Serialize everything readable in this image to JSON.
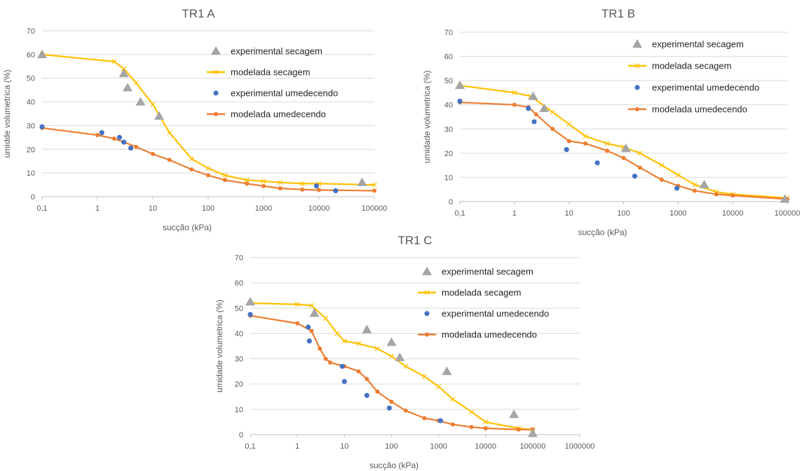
{
  "colors": {
    "exp_secagem": "#a5a5a5",
    "mod_secagem": "#ffc000",
    "exp_umedecendo": "#4472c4",
    "mod_umedecendo": "#ed7d31",
    "grid": "#d9d9d9",
    "text": "#595959"
  },
  "chart_data": [
    {
      "type": "scatter",
      "title": "TR1 A",
      "xlabel": "sucção (kPa)",
      "ylabel": "umidde volumetrica (%)",
      "x_scale": "log",
      "xlim": [
        0.1,
        100000
      ],
      "ylim": [
        0,
        70
      ],
      "x_ticks": [
        "0,1",
        "1",
        "10",
        "100",
        "1000",
        "10000",
        "100000"
      ],
      "y_ticks": [
        "0",
        "10",
        "20",
        "30",
        "40",
        "50",
        "60",
        "70"
      ],
      "grid": "horizontal",
      "legend_position": "top-right",
      "series": [
        {
          "name": "experimental secagem",
          "type": "scatter",
          "marker": "triangle",
          "x": [
            0.1,
            3,
            3.5,
            6,
            13,
            60000
          ],
          "y": [
            60,
            52,
            46,
            40,
            34,
            6
          ]
        },
        {
          "name": "modelada secagem",
          "type": "line",
          "marker": "x",
          "x": [
            0.1,
            2,
            3,
            5,
            10,
            20,
            50,
            100,
            200,
            500,
            1000,
            2000,
            5000,
            10000,
            100000
          ],
          "y": [
            60,
            57,
            54,
            48,
            39,
            27,
            16,
            12,
            9,
            7,
            6.5,
            6,
            5.5,
            5.5,
            5
          ]
        },
        {
          "name": "experimental umedecendo",
          "type": "scatter",
          "marker": "circle",
          "x": [
            0.1,
            1.2,
            2.5,
            3,
            4,
            9000,
            20000
          ],
          "y": [
            29.5,
            27,
            25,
            23,
            20.5,
            4.5,
            2.5
          ]
        },
        {
          "name": "modelada umedecendo",
          "type": "line",
          "marker": "circle",
          "x": [
            0.1,
            1,
            2,
            3,
            5,
            10,
            20,
            50,
            100,
            200,
            500,
            1000,
            2000,
            5000,
            10000,
            100000
          ],
          "y": [
            29,
            26,
            24.5,
            23,
            21,
            18,
            15.5,
            11.5,
            9,
            7,
            5.5,
            4.5,
            3.5,
            3,
            2.8,
            2.5
          ]
        }
      ]
    },
    {
      "type": "scatter",
      "title": "TR1 B",
      "xlabel": "sucção (kPa)",
      "ylabel": "umidade volumetrica (%)",
      "x_scale": "log",
      "xlim": [
        0.1,
        100000
      ],
      "ylim": [
        0,
        70
      ],
      "x_ticks": [
        "0,1",
        "1",
        "10",
        "100",
        "1000",
        "10000",
        "100000"
      ],
      "y_ticks": [
        "0",
        "10",
        "20",
        "30",
        "40",
        "50",
        "60",
        "70"
      ],
      "grid": "horizontal",
      "legend_position": "top-right",
      "series": [
        {
          "name": "experimental secagem",
          "type": "scatter",
          "marker": "triangle",
          "x": [
            0.1,
            2.2,
            3.5,
            110,
            3000,
            90000
          ],
          "y": [
            48,
            43.5,
            38.5,
            22,
            7,
            1
          ]
        },
        {
          "name": "modelada secagem",
          "type": "line",
          "marker": "x",
          "x": [
            0.1,
            1,
            2,
            5,
            10,
            20,
            50,
            100,
            200,
            500,
            1000,
            2000,
            5000,
            10000,
            100000
          ],
          "y": [
            48,
            45,
            43.5,
            37,
            32,
            27,
            24,
            22.5,
            20,
            15,
            11,
            7,
            4,
            3,
            1.5
          ]
        },
        {
          "name": "experimental umedecendo",
          "type": "scatter",
          "marker": "circle",
          "x": [
            0.1,
            1.8,
            2.3,
            9,
            33,
            160,
            950
          ],
          "y": [
            41.5,
            38.5,
            33,
            21.5,
            16,
            10.5,
            5.5
          ]
        },
        {
          "name": "modelada umedecendo",
          "type": "line",
          "marker": "circle",
          "x": [
            0.1,
            1,
            1.8,
            2.5,
            5,
            10,
            20,
            50,
            100,
            200,
            500,
            1000,
            2000,
            5000,
            10000,
            100000
          ],
          "y": [
            41,
            40,
            39,
            36,
            30,
            25,
            24,
            21,
            18,
            14,
            9,
            6.5,
            4.5,
            3,
            2.5,
            1
          ]
        }
      ]
    },
    {
      "type": "scatter",
      "title": "TR1 C",
      "xlabel": "sucção (kPa)",
      "ylabel": "umidade volumetrica (%)",
      "x_scale": "log",
      "xlim": [
        0.1,
        1000000
      ],
      "ylim": [
        0,
        70
      ],
      "x_ticks": [
        "0,1",
        "1",
        "10",
        "100",
        "1000",
        "10000",
        "100000",
        "1000000"
      ],
      "y_ticks": [
        "0",
        "10",
        "20",
        "30",
        "40",
        "50",
        "60",
        "70"
      ],
      "grid": "horizontal",
      "legend_position": "top-right",
      "series": [
        {
          "name": "experimental secagem",
          "type": "scatter",
          "marker": "triangle",
          "x": [
            0.1,
            2.3,
            30,
            100,
            150,
            1500,
            40000,
            100000
          ],
          "y": [
            52.5,
            48,
            41.5,
            36.5,
            30.5,
            25,
            8,
            0.5
          ]
        },
        {
          "name": "modelada secagem",
          "type": "line",
          "marker": "x",
          "x": [
            0.1,
            1,
            2,
            4,
            7,
            10,
            20,
            50,
            100,
            200,
            500,
            1000,
            2000,
            5000,
            10000,
            50000,
            100000
          ],
          "y": [
            52,
            51.5,
            51,
            46,
            40,
            37,
            36,
            34,
            31,
            27,
            23,
            19,
            14,
            9,
            5,
            2.5,
            2
          ]
        },
        {
          "name": "experimental umedecendo",
          "type": "scatter",
          "marker": "circle",
          "x": [
            0.1,
            1.7,
            1.8,
            9,
            10,
            30,
            90,
            1100
          ],
          "y": [
            47.5,
            42.5,
            37,
            27,
            21,
            15.5,
            10.5,
            5.5
          ]
        },
        {
          "name": "modelada umedecendo",
          "type": "line",
          "marker": "circle",
          "x": [
            0.1,
            1,
            2,
            3,
            4,
            5,
            10,
            20,
            30,
            50,
            100,
            200,
            500,
            1000,
            2000,
            5000,
            10000,
            50000,
            100000
          ],
          "y": [
            47,
            44,
            41,
            34,
            30,
            28.5,
            27,
            25,
            22,
            17,
            13,
            9.5,
            6.5,
            5.5,
            4,
            3,
            2.5,
            2,
            2
          ]
        }
      ]
    }
  ]
}
